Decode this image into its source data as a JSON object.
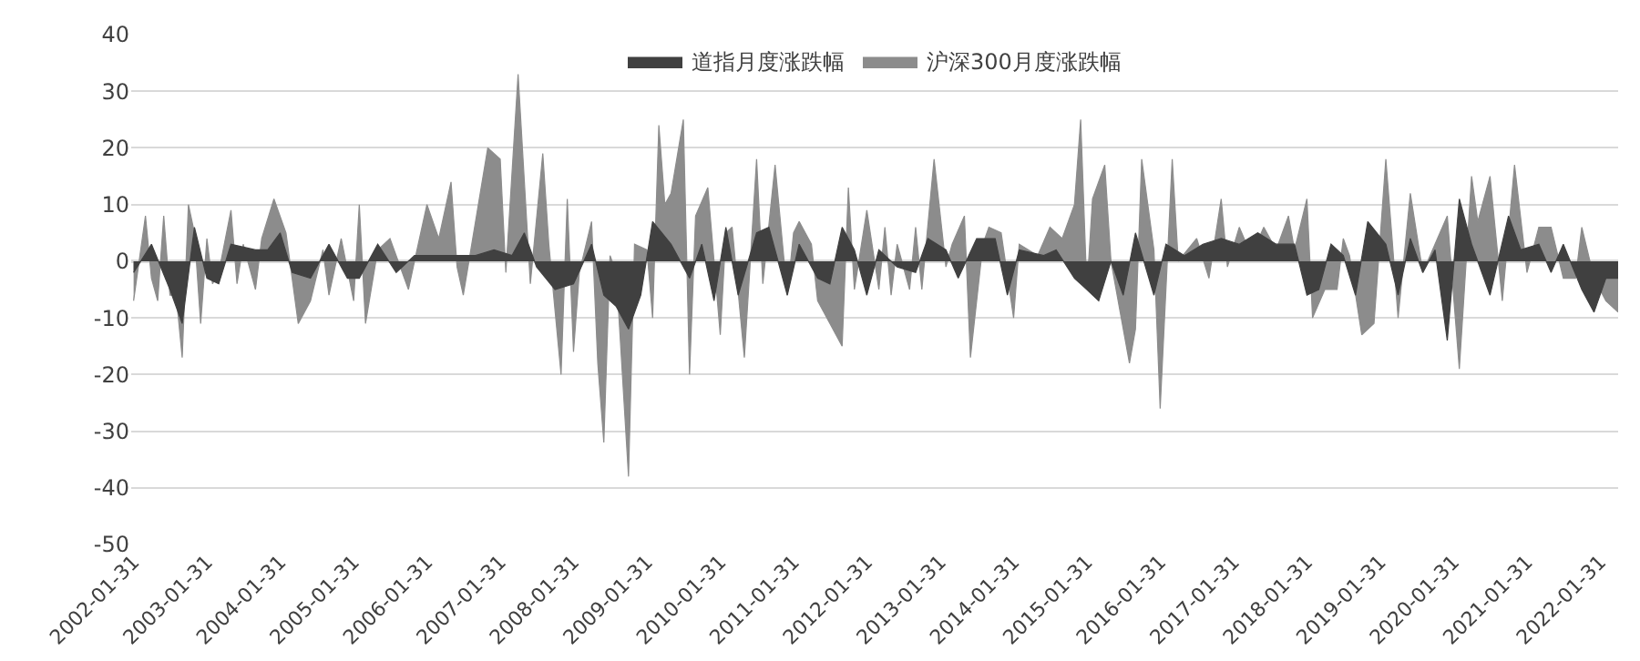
{
  "chart_data": {
    "type": "area",
    "legend": "top",
    "grid": "y",
    "ylim": [
      -50,
      40
    ],
    "yticks": [
      -50,
      -40,
      -30,
      -20,
      -10,
      0,
      10,
      20,
      30,
      40
    ],
    "xlim": [
      "2002-01-20",
      "2022-05-01"
    ],
    "xticks": [
      {
        "value": "2002-01-31",
        "label": "2002-01-31"
      },
      {
        "value": "2003-01-31",
        "label": "2003-01-31"
      },
      {
        "value": "2004-01-31",
        "label": "2004-01-31"
      },
      {
        "value": "2005-01-31",
        "label": "2005-01-31"
      },
      {
        "value": "2006-01-31",
        "label": "2006-01-31"
      },
      {
        "value": "2007-01-31",
        "label": "2007-01-31"
      },
      {
        "value": "2008-01-31",
        "label": "2008-01-31"
      },
      {
        "value": "2009-01-31",
        "label": "2009-01-31"
      },
      {
        "value": "2010-01-31",
        "label": "2010-01-31"
      },
      {
        "value": "2011-01-31",
        "label": "2011-01-31"
      },
      {
        "value": "2012-01-31",
        "label": "2012-01-31"
      },
      {
        "value": "2013-01-31",
        "label": "2013-01-31"
      },
      {
        "value": "2014-01-31",
        "label": "2014-01-31"
      },
      {
        "value": "2015-01-31",
        "label": "2015-01-31"
      },
      {
        "value": "2016-01-31",
        "label": "2016-01-31"
      },
      {
        "value": "2017-01-31",
        "label": "2017-01-31"
      },
      {
        "value": "2018-01-31",
        "label": "2018-01-31"
      },
      {
        "value": "2019-01-31",
        "label": "2019-01-31"
      },
      {
        "value": "2020-01-31",
        "label": "2020-01-31"
      },
      {
        "value": "2021-01-31",
        "label": "2021-01-31"
      },
      {
        "value": "2022-01-31",
        "label": "2022-01-31"
      }
    ],
    "series": [
      {
        "name": "道指月度涨跌幅",
        "color": "#404040",
        "x": [
          "2002-02",
          "2002-05",
          "2002-08",
          "2002-10",
          "2002-12",
          "2003-02",
          "2003-04",
          "2003-06",
          "2003-10",
          "2003-12",
          "2004-02",
          "2004-04",
          "2004-07",
          "2004-10",
          "2005-01",
          "2005-03",
          "2005-06",
          "2005-09",
          "2005-12",
          "2006-04",
          "2006-07",
          "2006-10",
          "2007-01",
          "2007-04",
          "2007-06",
          "2007-08",
          "2007-11",
          "2008-02",
          "2008-05",
          "2008-07",
          "2008-09",
          "2008-11",
          "2009-01",
          "2009-03",
          "2009-06",
          "2009-09",
          "2009-11",
          "2010-01",
          "2010-03",
          "2010-05",
          "2010-08",
          "2010-10",
          "2011-01",
          "2011-03",
          "2011-06",
          "2011-08",
          "2011-10",
          "2011-12",
          "2012-02",
          "2012-04",
          "2012-07",
          "2012-10",
          "2012-12",
          "2013-03",
          "2013-05",
          "2013-08",
          "2013-11",
          "2014-01",
          "2014-03",
          "2014-07",
          "2014-09",
          "2014-12",
          "2015-02",
          "2015-04",
          "2015-06",
          "2015-08",
          "2015-10",
          "2016-01",
          "2016-03",
          "2016-06",
          "2016-09",
          "2016-12",
          "2017-03",
          "2017-06",
          "2017-09",
          "2017-12",
          "2018-02",
          "2018-04",
          "2018-06",
          "2018-08",
          "2018-10",
          "2018-12",
          "2019-03",
          "2019-05",
          "2019-07",
          "2019-09",
          "2019-11",
          "2020-01",
          "2020-03",
          "2020-05",
          "2020-08",
          "2020-11",
          "2021-01",
          "2021-04",
          "2021-06",
          "2021-08",
          "2021-11",
          "2022-01",
          "2022-03",
          "2022-05"
        ],
        "values": [
          -2,
          3,
          -5,
          -11,
          6,
          -3,
          -4,
          3,
          2,
          2,
          5,
          -2,
          -3,
          3,
          -3,
          -3,
          3,
          -2,
          1,
          1,
          1,
          1,
          2,
          1,
          5,
          -1,
          -5,
          -4,
          3,
          -6,
          -8,
          -12,
          -6,
          7,
          3,
          -3,
          3,
          -7,
          6,
          -6,
          5,
          6,
          -6,
          3,
          -3,
          -4,
          6,
          2,
          -6,
          2,
          -1,
          -2,
          4,
          2,
          -3,
          4,
          4,
          -6,
          2,
          1,
          2,
          -3,
          -5,
          -7,
          0,
          -6,
          5,
          -6,
          3,
          1,
          3,
          4,
          3,
          5,
          3,
          3,
          -6,
          -5,
          3,
          1,
          -6,
          7,
          3,
          -6,
          4,
          -2,
          2,
          -14,
          11,
          3,
          -6,
          8,
          2,
          3,
          -2,
          3,
          -5,
          -9,
          -3,
          -3
        ]
      },
      {
        "name": "沪深300月度涨跌幅",
        "color": "#8c8c8c",
        "x": [
          "2002-02",
          "2002-04",
          "2002-05",
          "2002-06",
          "2002-07",
          "2002-08",
          "2002-09",
          "2002-10",
          "2002-11",
          "2002-12",
          "2003-01",
          "2003-02",
          "2003-03",
          "2003-04",
          "2003-06",
          "2003-07",
          "2003-08",
          "2003-10",
          "2003-11",
          "2004-01",
          "2004-03",
          "2004-05",
          "2004-07",
          "2004-09",
          "2004-10",
          "2004-12",
          "2005-02",
          "2005-03",
          "2005-04",
          "2005-06",
          "2005-08",
          "2005-11",
          "2005-12",
          "2006-02",
          "2006-04",
          "2006-06",
          "2006-07",
          "2006-08",
          "2006-10",
          "2006-12",
          "2007-02",
          "2007-03",
          "2007-05",
          "2007-07",
          "2007-09",
          "2007-10",
          "2007-12",
          "2008-01",
          "2008-02",
          "2008-03",
          "2008-05",
          "2008-06",
          "2008-07",
          "2008-08",
          "2008-09",
          "2008-11",
          "2008-12",
          "2009-02",
          "2009-03",
          "2009-04",
          "2009-05",
          "2009-06",
          "2009-08",
          "2009-09",
          "2009-10",
          "2009-12",
          "2010-02",
          "2010-03",
          "2010-04",
          "2010-06",
          "2010-08",
          "2010-09",
          "2010-11",
          "2011-01",
          "2011-02",
          "2011-03",
          "2011-05",
          "2011-06",
          "2011-10",
          "2011-11",
          "2011-12",
          "2012-02",
          "2012-04",
          "2012-05",
          "2012-06",
          "2012-07",
          "2012-09",
          "2012-10",
          "2012-11",
          "2013-01",
          "2013-03",
          "2013-04",
          "2013-06",
          "2013-07",
          "2013-09",
          "2013-10",
          "2013-12",
          "2014-02",
          "2014-03",
          "2014-06",
          "2014-08",
          "2014-10",
          "2014-12",
          "2015-01",
          "2015-02",
          "2015-03",
          "2015-05",
          "2015-06",
          "2015-09",
          "2015-10",
          "2015-11",
          "2016-01",
          "2016-02",
          "2016-04",
          "2016-05",
          "2016-08",
          "2016-10",
          "2016-12",
          "2017-01",
          "2017-03",
          "2017-05",
          "2017-07",
          "2017-09",
          "2017-11",
          "2017-12",
          "2018-02",
          "2018-03",
          "2018-05",
          "2018-07",
          "2018-08",
          "2018-09",
          "2018-11",
          "2019-01",
          "2019-03",
          "2019-04",
          "2019-05",
          "2019-07",
          "2019-09",
          "2019-11",
          "2020-01",
          "2020-03",
          "2020-05",
          "2020-06",
          "2020-08",
          "2020-10",
          "2020-12",
          "2021-02",
          "2021-04",
          "2021-06",
          "2021-08",
          "2021-10",
          "2021-11",
          "2022-01",
          "2022-03",
          "2022-05"
        ],
        "values": [
          -7,
          8,
          -3,
          -7,
          8,
          -6,
          -6,
          -17,
          10,
          5,
          -11,
          4,
          -4,
          -2,
          9,
          -4,
          3,
          -5,
          4,
          11,
          5,
          -11,
          -7,
          2,
          -6,
          4,
          -7,
          10,
          -11,
          2,
          4,
          -5,
          0,
          10,
          4,
          14,
          -1,
          -6,
          7,
          20,
          18,
          -2,
          33,
          -4,
          19,
          3,
          -20,
          11,
          -16,
          -2,
          7,
          -18,
          -32,
          1,
          -2,
          -38,
          3,
          2,
          -10,
          24,
          10,
          12,
          25,
          -20,
          8,
          13,
          -13,
          5,
          6,
          -17,
          18,
          -4,
          17,
          -6,
          5,
          7,
          3,
          -7,
          -15,
          13,
          -5,
          9,
          -5,
          6,
          -6,
          3,
          -5,
          6,
          -5,
          18,
          -1,
          3,
          8,
          -17,
          3,
          6,
          5,
          -10,
          3,
          1,
          6,
          4,
          10,
          25,
          -5,
          11,
          17,
          0,
          -18,
          -12,
          18,
          2,
          -26,
          18,
          0,
          4,
          -3,
          11,
          -1,
          6,
          1,
          6,
          2,
          8,
          2,
          11,
          -10,
          -5,
          -5,
          4,
          1,
          -13,
          -11,
          18,
          4,
          -10,
          12,
          -2,
          3,
          8,
          -19,
          15,
          7,
          15,
          -7,
          17,
          -2,
          6,
          6,
          -3,
          -3,
          6,
          -3,
          -7,
          -9
        ]
      }
    ]
  }
}
